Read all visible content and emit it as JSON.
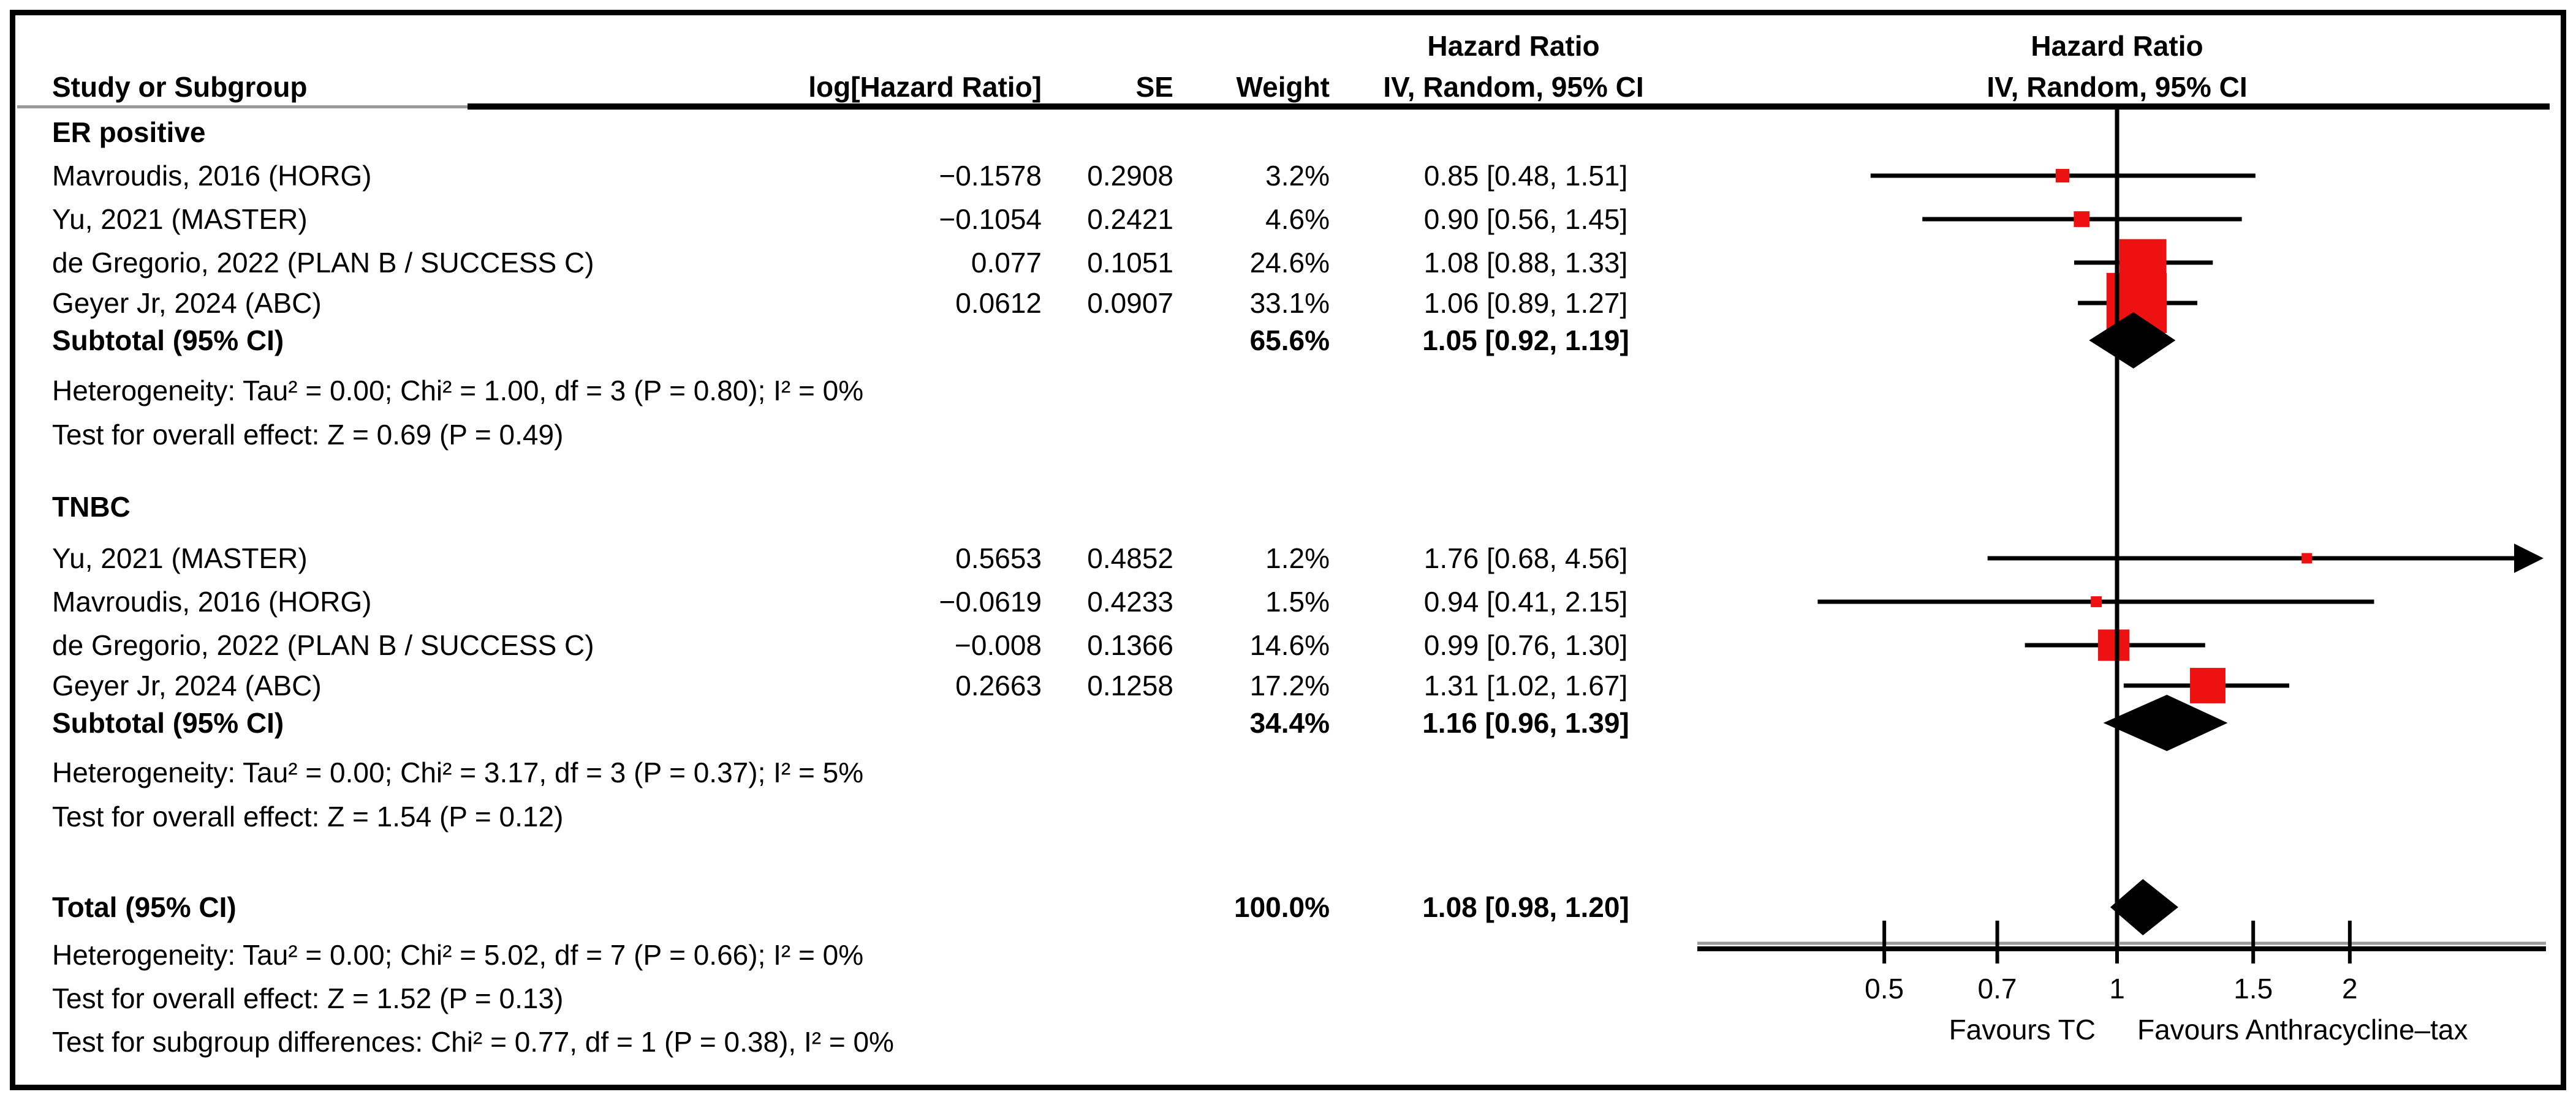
{
  "chart_data": {
    "type": "forest",
    "title": "Hazard Ratio",
    "effect_measure": "Hazard Ratio",
    "model_label": "IV, Random, 95% CI",
    "xscale": "log",
    "xticks": [
      "0.5",
      "0.7",
      "1",
      "1.5",
      "2"
    ],
    "xtick_values": [
      0.5,
      0.7,
      1,
      1.5,
      2
    ],
    "ref_line": 1,
    "favours_left": "Favours TC",
    "favours_right": "Favours Anthracycline–tax",
    "columns": {
      "study": "Study or Subgroup",
      "loghr": "log[Hazard Ratio]",
      "se": "SE",
      "weight": "Weight",
      "effect_line1": "Hazard Ratio",
      "effect_line2": "IV, Random, 95% CI"
    },
    "colors": {
      "marker": "#EE1111",
      "line": "#000000",
      "diamond": "#000000"
    },
    "groups": [
      {
        "name": "ER positive",
        "studies": [
          {
            "label": "Mavroudis, 2016 (HORG)",
            "log_hr": "−0.1578",
            "se": "0.2908",
            "weight": "3.2%",
            "weight_pct": 3.2,
            "hr": 0.85,
            "lo": 0.48,
            "hi": 1.51,
            "ci_text": "0.85 [0.48, 1.51]"
          },
          {
            "label": "Yu, 2021 (MASTER)",
            "log_hr": "−0.1054",
            "se": "0.2421",
            "weight": "4.6%",
            "weight_pct": 4.6,
            "hr": 0.9,
            "lo": 0.56,
            "hi": 1.45,
            "ci_text": "0.90 [0.56, 1.45]"
          },
          {
            "label": "de Gregorio, 2022 (PLAN B / SUCCESS C)",
            "log_hr": "0.077",
            "se": "0.1051",
            "weight": "24.6%",
            "weight_pct": 24.6,
            "hr": 1.08,
            "lo": 0.88,
            "hi": 1.33,
            "ci_text": "1.08 [0.88, 1.33]"
          },
          {
            "label": "Geyer Jr, 2024 (ABC)",
            "log_hr": "0.0612",
            "se": "0.0907",
            "weight": "33.1%",
            "weight_pct": 33.1,
            "hr": 1.06,
            "lo": 0.89,
            "hi": 1.27,
            "ci_text": "1.06 [0.89, 1.27]"
          }
        ],
        "subtotal": {
          "label": "Subtotal (95% CI)",
          "weight": "65.6%",
          "hr": 1.05,
          "lo": 0.92,
          "hi": 1.19,
          "ci_text": "1.05 [0.92, 1.19]"
        },
        "heterogeneity": "Heterogeneity: Tau² = 0.00; Chi² = 1.00, df = 3 (P = 0.80); I² = 0%",
        "overall_effect": "Test for overall effect: Z = 0.69 (P = 0.49)"
      },
      {
        "name": "TNBC",
        "studies": [
          {
            "label": "Yu, 2021 (MASTER)",
            "log_hr": "0.5653",
            "se": "0.4852",
            "weight": "1.2%",
            "weight_pct": 1.2,
            "hr": 1.76,
            "lo": 0.68,
            "hi": 4.56,
            "ci_text": "1.76 [0.68, 4.56]"
          },
          {
            "label": "Mavroudis, 2016 (HORG)",
            "log_hr": "−0.0619",
            "se": "0.4233",
            "weight": "1.5%",
            "weight_pct": 1.5,
            "hr": 0.94,
            "lo": 0.41,
            "hi": 2.15,
            "ci_text": "0.94 [0.41, 2.15]"
          },
          {
            "label": "de Gregorio, 2022 (PLAN B / SUCCESS C)",
            "log_hr": "−0.008",
            "se": "0.1366",
            "weight": "14.6%",
            "weight_pct": 14.6,
            "hr": 0.99,
            "lo": 0.76,
            "hi": 1.3,
            "ci_text": "0.99 [0.76, 1.30]"
          },
          {
            "label": "Geyer Jr, 2024 (ABC)",
            "log_hr": "0.2663",
            "se": "0.1258",
            "weight": "17.2%",
            "weight_pct": 17.2,
            "hr": 1.31,
            "lo": 1.02,
            "hi": 1.67,
            "ci_text": "1.31 [1.02, 1.67]"
          }
        ],
        "subtotal": {
          "label": "Subtotal (95% CI)",
          "weight": "34.4%",
          "hr": 1.16,
          "lo": 0.96,
          "hi": 1.39,
          "ci_text": "1.16 [0.96, 1.39]"
        },
        "heterogeneity": "Heterogeneity: Tau² = 0.00; Chi² = 3.17, df = 3 (P = 0.37); I² = 5%",
        "overall_effect": "Test for overall effect: Z = 1.54 (P = 0.12)"
      }
    ],
    "total": {
      "label": "Total (95% CI)",
      "weight": "100.0%",
      "hr": 1.08,
      "lo": 0.98,
      "hi": 1.2,
      "ci_text": "1.08 [0.98, 1.20]",
      "heterogeneity": "Heterogeneity: Tau² = 0.00; Chi² = 5.02, df = 7 (P = 0.66); I² = 0%",
      "overall_effect": "Test for overall effect: Z = 1.52 (P = 0.13)",
      "subgroup_diff": "Test for subgroup differences: Chi² = 0.77, df = 1 (P = 0.38), I² = 0%"
    }
  }
}
